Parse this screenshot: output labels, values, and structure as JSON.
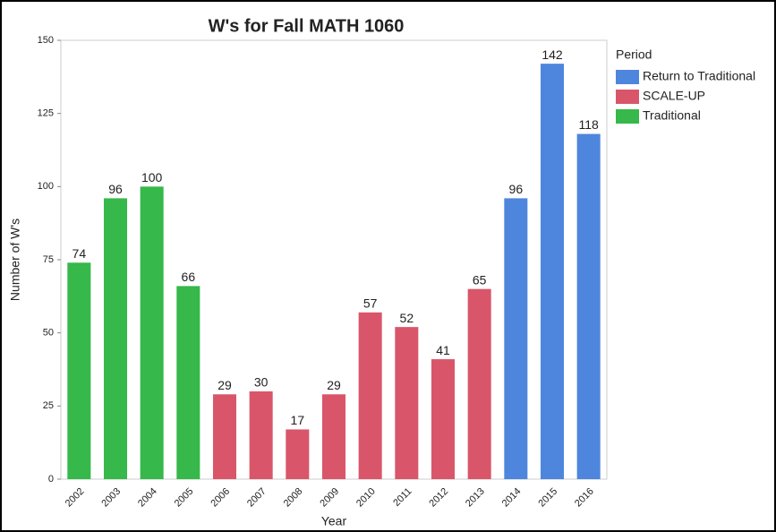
{
  "chart_data": {
    "type": "bar",
    "title": "W's for Fall MATH 1060",
    "x_label": "Year",
    "y_label": "Number of W's",
    "categories": [
      "2002",
      "2003",
      "2004",
      "2005",
      "2006",
      "2007",
      "2008",
      "2009",
      "2010",
      "2011",
      "2012",
      "2013",
      "2014",
      "2015",
      "2016"
    ],
    "legend_title": "Period",
    "series": [
      {
        "name": "Return to Traditional",
        "color": "#4e86dd",
        "values": [
          null,
          null,
          null,
          null,
          null,
          null,
          null,
          null,
          null,
          null,
          null,
          null,
          96,
          142,
          118
        ]
      },
      {
        "name": "SCALE-UP",
        "color": "#d9566a",
        "values": [
          null,
          null,
          null,
          null,
          29,
          30,
          17,
          29,
          57,
          52,
          41,
          65,
          null,
          null,
          null
        ]
      },
      {
        "name": "Traditional",
        "color": "#36b84a",
        "values": [
          74,
          96,
          100,
          66,
          null,
          null,
          null,
          null,
          null,
          null,
          null,
          null,
          null,
          null,
          null
        ]
      }
    ],
    "ylim": [
      0,
      150
    ],
    "yticks": [
      0,
      25,
      50,
      75,
      100,
      125,
      150
    ],
    "grid": false,
    "legend": "right"
  }
}
